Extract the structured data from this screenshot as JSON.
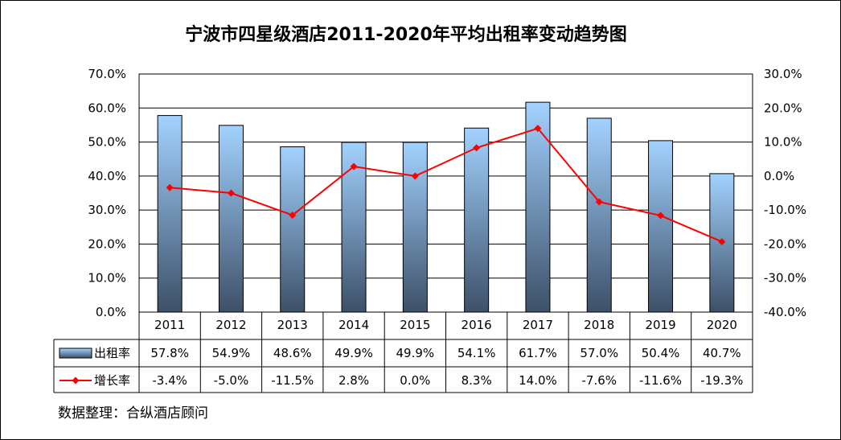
{
  "chart_data": {
    "type": "bar",
    "title": "宁波市四星级酒店2011-2020年平均出租率变动趋势图",
    "categories": [
      "2011",
      "2012",
      "2013",
      "2014",
      "2015",
      "2016",
      "2017",
      "2018",
      "2019",
      "2020"
    ],
    "series": [
      {
        "name": "出租率",
        "type": "bar",
        "axis": "left",
        "values": [
          57.8,
          54.9,
          48.6,
          49.9,
          49.9,
          54.1,
          61.7,
          57.0,
          50.4,
          40.7
        ],
        "labels": [
          "57.8%",
          "54.9%",
          "48.6%",
          "49.9%",
          "49.9%",
          "54.1%",
          "61.7%",
          "57.0%",
          "50.4%",
          "40.7%"
        ],
        "color": "#9ccbf2"
      },
      {
        "name": "增长率",
        "type": "line",
        "axis": "right",
        "values": [
          -3.4,
          -5.0,
          -11.5,
          2.8,
          0.0,
          8.3,
          14.0,
          -7.6,
          -11.6,
          -19.3
        ],
        "labels": [
          "-3.4%",
          "-5.0%",
          "-11.5%",
          "2.8%",
          "0.0%",
          "8.3%",
          "14.0%",
          "-7.6%",
          "-11.6%",
          "-19.3%"
        ],
        "color": "#ff0000"
      }
    ],
    "y_left": {
      "range": [
        0,
        70
      ],
      "ticks": [
        "0.0%",
        "10.0%",
        "20.0%",
        "30.0%",
        "40.0%",
        "50.0%",
        "60.0%",
        "70.0%"
      ]
    },
    "y_right": {
      "range": [
        -40,
        30
      ],
      "ticks": [
        "-40.0%",
        "-30.0%",
        "-20.0%",
        "-10.0%",
        "0.0%",
        "10.0%",
        "20.0%",
        "30.0%"
      ]
    },
    "grid": true,
    "legend": "data-table"
  },
  "source_note": "数据整理：合纵酒店顾问",
  "colors": {
    "bar_top": "#a3d2ff",
    "bar_bottom": "#3d5068",
    "line": "#ff0000"
  }
}
